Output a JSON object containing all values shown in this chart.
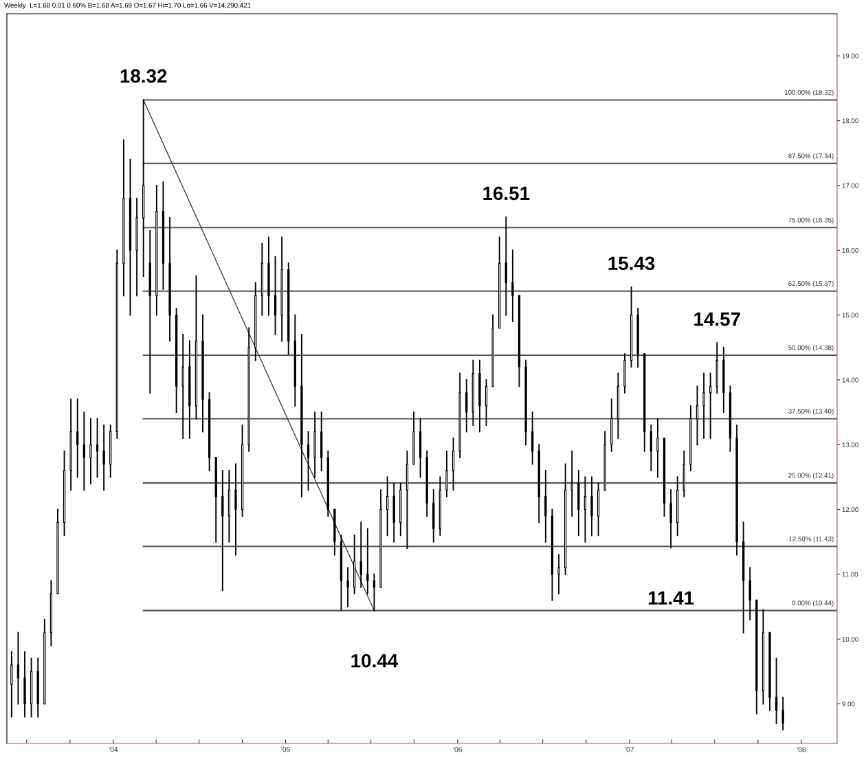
{
  "chart_data": {
    "type": "candlestick",
    "title": "Weekly  L=1.68 0.01 0.60% B=1.68 A=1.69 O=1.67 Hi=1.70 Lo=1.66 V=14,290,421",
    "x": [
      "2003-05-30",
      "2003-06-13",
      "2003-06-27",
      "2003-07-11",
      "2003-07-25",
      "2003-08-08",
      "2003-08-22",
      "2003-09-05",
      "2003-09-19",
      "2003-10-03",
      "2003-10-17",
      "2003-10-31",
      "2003-11-14",
      "2003-11-28",
      "2003-12-12",
      "2003-12-26",
      "2004-01-09",
      "2004-01-23",
      "2004-02-06",
      "2004-02-20",
      "2004-03-05",
      "2004-03-19",
      "2004-04-02",
      "2004-04-16",
      "2004-04-30",
      "2004-05-14",
      "2004-05-28",
      "2004-06-11",
      "2004-06-25",
      "2004-07-09",
      "2004-07-23",
      "2004-08-06",
      "2004-08-20",
      "2004-09-03",
      "2004-09-17",
      "2004-10-01",
      "2004-10-15",
      "2004-10-29",
      "2004-11-12",
      "2004-11-26",
      "2004-12-10",
      "2004-12-24",
      "2005-01-07",
      "2005-01-21",
      "2005-02-04",
      "2005-02-18",
      "2005-03-04",
      "2005-03-18",
      "2005-04-01",
      "2005-04-15",
      "2005-04-29",
      "2005-05-13",
      "2005-05-27",
      "2005-06-10",
      "2005-06-24",
      "2005-07-08",
      "2005-07-22",
      "2005-08-05",
      "2005-08-19",
      "2005-09-02",
      "2005-09-16",
      "2005-09-30",
      "2005-10-14",
      "2005-10-28",
      "2005-11-11",
      "2005-11-25",
      "2005-12-09",
      "2005-12-23",
      "2006-01-06",
      "2006-01-20",
      "2006-02-03",
      "2006-02-17",
      "2006-03-03",
      "2006-03-17",
      "2006-03-31",
      "2006-04-14",
      "2006-04-28",
      "2006-05-12",
      "2006-05-26",
      "2006-06-09",
      "2006-06-23",
      "2006-07-07",
      "2006-07-21",
      "2006-08-04",
      "2006-08-18",
      "2006-09-01",
      "2006-09-15",
      "2006-09-29",
      "2006-10-13",
      "2006-10-27",
      "2006-11-10",
      "2006-11-24",
      "2006-12-08",
      "2006-12-22",
      "2007-01-05",
      "2007-01-19",
      "2007-02-02",
      "2007-02-16",
      "2007-03-02",
      "2007-03-16",
      "2007-03-30",
      "2007-04-13",
      "2007-04-27",
      "2007-05-11",
      "2007-05-25",
      "2007-06-08",
      "2007-06-22",
      "2007-07-06",
      "2007-07-20",
      "2007-08-03",
      "2007-08-17",
      "2007-08-31",
      "2007-09-14",
      "2007-09-28",
      "2007-10-12",
      "2007-10-26",
      "2007-11-09",
      "2007-11-23"
    ],
    "ohlc": [
      [
        9.3,
        9.8,
        8.8,
        9.6
      ],
      [
        9.6,
        10.1,
        9.0,
        9.4
      ],
      [
        9.4,
        9.8,
        8.8,
        9.0
      ],
      [
        9.0,
        9.7,
        8.8,
        9.5
      ],
      [
        9.5,
        9.7,
        8.8,
        9.0
      ],
      [
        9.0,
        10.3,
        9.0,
        10.1
      ],
      [
        10.1,
        10.9,
        9.9,
        10.7
      ],
      [
        10.7,
        12.0,
        10.7,
        11.8
      ],
      [
        11.8,
        12.9,
        11.6,
        12.6
      ],
      [
        12.6,
        13.7,
        12.3,
        13.2
      ],
      [
        13.2,
        13.7,
        12.5,
        13.0
      ],
      [
        13.0,
        13.5,
        12.3,
        12.8
      ],
      [
        12.8,
        13.4,
        12.4,
        13.0
      ],
      [
        13.0,
        13.4,
        12.5,
        12.9
      ],
      [
        12.9,
        13.3,
        12.3,
        12.7
      ],
      [
        12.7,
        13.3,
        12.5,
        13.2
      ],
      [
        13.2,
        16.0,
        13.1,
        15.8
      ],
      [
        15.8,
        17.7,
        15.3,
        16.8
      ],
      [
        16.8,
        17.4,
        15.0,
        16.0
      ],
      [
        16.0,
        16.8,
        15.3,
        16.5
      ],
      [
        16.5,
        18.32,
        15.6,
        17.0
      ],
      [
        15.8,
        16.3,
        13.8,
        15.3
      ],
      [
        15.3,
        17.0,
        15.0,
        16.6
      ],
      [
        16.6,
        17.05,
        15.4,
        15.8
      ],
      [
        15.8,
        16.5,
        14.6,
        15.0
      ],
      [
        15.0,
        15.1,
        13.5,
        13.9
      ],
      [
        13.9,
        14.7,
        13.1,
        14.2
      ],
      [
        14.2,
        14.6,
        13.1,
        13.6
      ],
      [
        13.6,
        15.6,
        13.4,
        14.6
      ],
      [
        14.6,
        15.0,
        13.2,
        13.7
      ],
      [
        13.7,
        13.8,
        12.6,
        12.8
      ],
      [
        12.8,
        12.8,
        11.5,
        12.2
      ],
      [
        12.2,
        12.6,
        10.75,
        11.9
      ],
      [
        11.9,
        12.6,
        11.5,
        12.3
      ],
      [
        12.3,
        12.7,
        11.3,
        12.0
      ],
      [
        12.0,
        13.3,
        11.9,
        13.0
      ],
      [
        13.0,
        14.8,
        12.9,
        14.5
      ],
      [
        14.5,
        15.5,
        14.3,
        15.3
      ],
      [
        15.3,
        16.1,
        15.0,
        15.8
      ],
      [
        15.8,
        16.2,
        15.0,
        15.3
      ],
      [
        15.3,
        15.9,
        14.7,
        15.0
      ],
      [
        15.0,
        16.2,
        14.6,
        15.7
      ],
      [
        15.7,
        15.8,
        14.4,
        14.6
      ],
      [
        14.6,
        15.0,
        13.6,
        13.9
      ],
      [
        13.9,
        14.7,
        12.2,
        13.0
      ],
      [
        13.0,
        13.2,
        12.3,
        12.8
      ],
      [
        12.8,
        13.5,
        12.5,
        13.2
      ],
      [
        13.2,
        13.5,
        12.6,
        12.8
      ],
      [
        12.8,
        12.9,
        11.9,
        12.0
      ],
      [
        12.0,
        12.0,
        11.3,
        11.5
      ],
      [
        11.5,
        11.6,
        10.44,
        10.9
      ],
      [
        10.9,
        11.1,
        10.5,
        10.8
      ],
      [
        10.8,
        11.6,
        10.7,
        11.2
      ],
      [
        11.2,
        11.8,
        10.8,
        11.0
      ],
      [
        11.0,
        11.7,
        10.7,
        10.9
      ],
      [
        10.9,
        11.0,
        10.44,
        10.8
      ],
      [
        10.8,
        12.3,
        10.8,
        12.0
      ],
      [
        12.0,
        12.5,
        11.6,
        12.2
      ],
      [
        12.2,
        12.4,
        11.5,
        11.8
      ],
      [
        11.8,
        12.4,
        11.6,
        12.3
      ],
      [
        12.3,
        12.9,
        11.4,
        12.7
      ],
      [
        12.7,
        13.5,
        12.7,
        13.2
      ],
      [
        13.2,
        13.4,
        12.5,
        12.8
      ],
      [
        12.8,
        12.9,
        11.9,
        12.1
      ],
      [
        12.1,
        12.3,
        11.5,
        11.7
      ],
      [
        11.7,
        12.5,
        11.6,
        12.3
      ],
      [
        12.3,
        12.9,
        12.2,
        12.6
      ],
      [
        12.6,
        13.1,
        12.3,
        12.9
      ],
      [
        12.9,
        14.1,
        12.8,
        13.8
      ],
      [
        13.8,
        14.0,
        13.2,
        13.5
      ],
      [
        13.5,
        14.3,
        13.3,
        14.1
      ],
      [
        14.1,
        14.3,
        13.2,
        13.6
      ],
      [
        13.6,
        14.0,
        13.3,
        13.9
      ],
      [
        13.9,
        15.0,
        13.9,
        14.8
      ],
      [
        14.8,
        16.2,
        14.8,
        15.8
      ],
      [
        15.8,
        16.51,
        15.0,
        15.5
      ],
      [
        15.5,
        16.0,
        14.9,
        15.3
      ],
      [
        15.3,
        15.3,
        13.9,
        14.2
      ],
      [
        14.2,
        14.3,
        13.0,
        13.2
      ],
      [
        13.2,
        13.5,
        12.7,
        12.9
      ],
      [
        12.9,
        13.0,
        11.8,
        12.2
      ],
      [
        12.2,
        12.6,
        11.5,
        11.9
      ],
      [
        11.9,
        12.0,
        10.6,
        11.0
      ],
      [
        11.0,
        11.3,
        10.7,
        11.1
      ],
      [
        11.1,
        12.7,
        11.0,
        12.3
      ],
      [
        12.3,
        12.9,
        11.9,
        12.4
      ],
      [
        12.4,
        12.6,
        11.6,
        12.0
      ],
      [
        12.0,
        12.5,
        11.5,
        12.2
      ],
      [
        12.2,
        12.5,
        11.6,
        11.9
      ],
      [
        11.9,
        12.4,
        11.6,
        12.3
      ],
      [
        12.3,
        13.2,
        12.3,
        13.0
      ],
      [
        13.0,
        13.7,
        12.9,
        13.4
      ],
      [
        13.4,
        14.1,
        13.1,
        13.9
      ],
      [
        13.9,
        14.4,
        13.8,
        14.3
      ],
      [
        14.3,
        15.43,
        14.2,
        15.0
      ],
      [
        15.0,
        15.1,
        14.2,
        14.4
      ],
      [
        14.4,
        14.4,
        12.9,
        13.2
      ],
      [
        13.2,
        13.3,
        12.6,
        12.9
      ],
      [
        12.9,
        13.4,
        12.5,
        13.1
      ],
      [
        13.1,
        13.1,
        11.9,
        12.1
      ],
      [
        12.1,
        12.3,
        11.41,
        11.8
      ],
      [
        11.8,
        12.5,
        11.6,
        12.3
      ],
      [
        12.3,
        12.9,
        12.2,
        12.7
      ],
      [
        12.7,
        13.6,
        12.6,
        13.4
      ],
      [
        13.4,
        13.9,
        13.0,
        13.6
      ],
      [
        13.6,
        14.1,
        13.1,
        13.8
      ],
      [
        13.8,
        14.1,
        13.1,
        13.9
      ],
      [
        13.9,
        14.57,
        13.8,
        14.3
      ],
      [
        14.3,
        14.5,
        13.5,
        13.8
      ],
      [
        13.8,
        13.9,
        12.9,
        13.1
      ],
      [
        13.1,
        13.3,
        11.3,
        11.5
      ],
      [
        11.5,
        11.8,
        10.1,
        10.9
      ],
      [
        10.9,
        11.1,
        10.3,
        10.6
      ],
      [
        10.6,
        10.6,
        8.85,
        9.2
      ],
      [
        9.2,
        10.45,
        9.0,
        10.1
      ],
      [
        10.1,
        10.1,
        8.9,
        9.1
      ],
      [
        9.1,
        9.7,
        8.7,
        8.9
      ],
      [
        8.9,
        9.1,
        8.6,
        8.7
      ]
    ],
    "color": "#000000",
    "series": [
      {
        "type": "line",
        "x": [
          "2004-03-05",
          "2005-07-08"
        ],
        "values": [
          18.32,
          10.44
        ],
        "color": "#333333"
      }
    ],
    "ref_lines": [
      {
        "axis": "y",
        "value": 18.32,
        "label": "100.00% (18.32)",
        "color": "#555555"
      },
      {
        "axis": "y",
        "value": 17.34,
        "label": "87.50% (17.34)",
        "color": "#555555"
      },
      {
        "axis": "y",
        "value": 16.35,
        "label": "75.00% (16.35)",
        "color": "#555555"
      },
      {
        "axis": "y",
        "value": 15.37,
        "label": "62.50% (15.37)",
        "color": "#555555"
      },
      {
        "axis": "y",
        "value": 14.38,
        "label": "50.00% (14.38)",
        "color": "#555555"
      },
      {
        "axis": "y",
        "value": 13.4,
        "label": "37.50% (13.40)",
        "color": "#555555"
      },
      {
        "axis": "y",
        "value": 12.41,
        "label": "25.00% (12.41)",
        "color": "#555555"
      },
      {
        "axis": "y",
        "value": 11.43,
        "label": "12.50% (11.43)",
        "color": "#555555"
      },
      {
        "axis": "y",
        "value": 10.44,
        "label": "0.00% (10.44)",
        "color": "#555555"
      }
    ],
    "annotations": [
      {
        "text": "18.32",
        "x": "2004-03-05",
        "y": 18.32
      },
      {
        "text": "10.44",
        "x": "2005-07-08",
        "y": 10.44
      },
      {
        "text": "16.51",
        "x": "2006-04-14",
        "y": 16.51
      },
      {
        "text": "15.43",
        "x": "2007-01-05",
        "y": 15.43
      },
      {
        "text": "11.41",
        "x": "2007-03-30",
        "y": 11.41
      },
      {
        "text": "14.57",
        "x": "2007-07-06",
        "y": 14.57
      }
    ],
    "xlim": [
      "2003-05-20",
      "2008-03-17"
    ],
    "xticks": [
      {
        "value": "2003-07-01",
        "label": null
      },
      {
        "value": "2003-10-01",
        "label": null
      },
      {
        "value": "2004-01-01",
        "label": "'04"
      },
      {
        "value": "2004-04-01",
        "label": null
      },
      {
        "value": "2004-07-01",
        "label": null
      },
      {
        "value": "2004-10-01",
        "label": null
      },
      {
        "value": "2005-01-01",
        "label": "'05"
      },
      {
        "value": "2005-04-01",
        "label": null
      },
      {
        "value": "2005-07-01",
        "label": null
      },
      {
        "value": "2005-10-01",
        "label": null
      },
      {
        "value": "2006-01-01",
        "label": "'06"
      },
      {
        "value": "2006-04-01",
        "label": null
      },
      {
        "value": "2006-07-01",
        "label": null
      },
      {
        "value": "2006-10-01",
        "label": null
      },
      {
        "value": "2007-01-01",
        "label": "'07"
      },
      {
        "value": "2007-04-01",
        "label": null
      },
      {
        "value": "2007-07-01",
        "label": null
      },
      {
        "value": "2007-10-01",
        "label": null
      },
      {
        "value": "2008-01-01",
        "label": "'08"
      }
    ],
    "ylim": [
      8.39,
      19.65
    ],
    "yticks": [
      {
        "value": 9,
        "label": "9.00"
      },
      {
        "value": 10,
        "label": "10.00"
      },
      {
        "value": 11,
        "label": "11.00"
      },
      {
        "value": 12,
        "label": "12.00"
      },
      {
        "value": 13,
        "label": "13.00"
      },
      {
        "value": 14,
        "label": "14.00"
      },
      {
        "value": 15,
        "label": "15.00"
      },
      {
        "value": 16,
        "label": "16.00"
      },
      {
        "value": 17,
        "label": "17.00"
      },
      {
        "value": 18,
        "label": "18.00"
      },
      {
        "value": 19,
        "label": "19.00"
      }
    ],
    "grid": false,
    "legend": false
  }
}
